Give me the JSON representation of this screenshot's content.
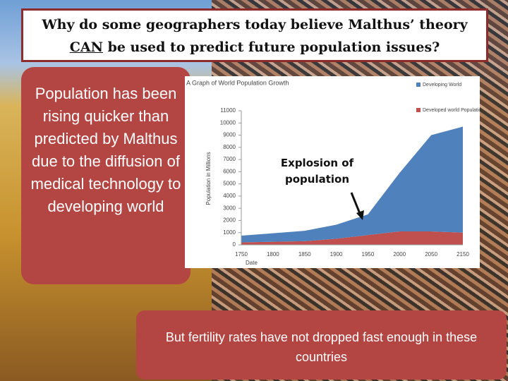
{
  "title": {
    "line1": "Why do some geographers today believe Malthus’ theory",
    "emphasis": "CAN",
    "line2": "be used to predict future population issues?"
  },
  "left_box": "Population has been rising quicker than predicted by Malthus due to the diffusion of medical technology to developing world",
  "bottom_box": "But fertility rates have not dropped fast enough in these countries",
  "chart_data": {
    "type": "area",
    "stacked": true,
    "title": "A Graph of World Population Growth",
    "y_label": "Population in Millions",
    "x_label": "Date",
    "annotation": "Explosion of population",
    "categories": [
      "1750",
      "1800",
      "1850",
      "1900",
      "1950",
      "2000",
      "2050",
      "2150"
    ],
    "series": [
      {
        "name": "Developed world Population",
        "color": "#c0504d",
        "values": [
          200,
          250,
          300,
          500,
          800,
          1100,
          1100,
          1000
        ]
      },
      {
        "name": "Developing World",
        "color": "#4f81bd",
        "values": [
          550,
          700,
          850,
          1150,
          1700,
          4800,
          7900,
          8700
        ]
      }
    ],
    "ylim": [
      0,
      11000
    ],
    "yticks": [
      0,
      1000,
      2000,
      3000,
      4000,
      5000,
      6000,
      7000,
      8000,
      9000,
      10000,
      11000
    ]
  }
}
